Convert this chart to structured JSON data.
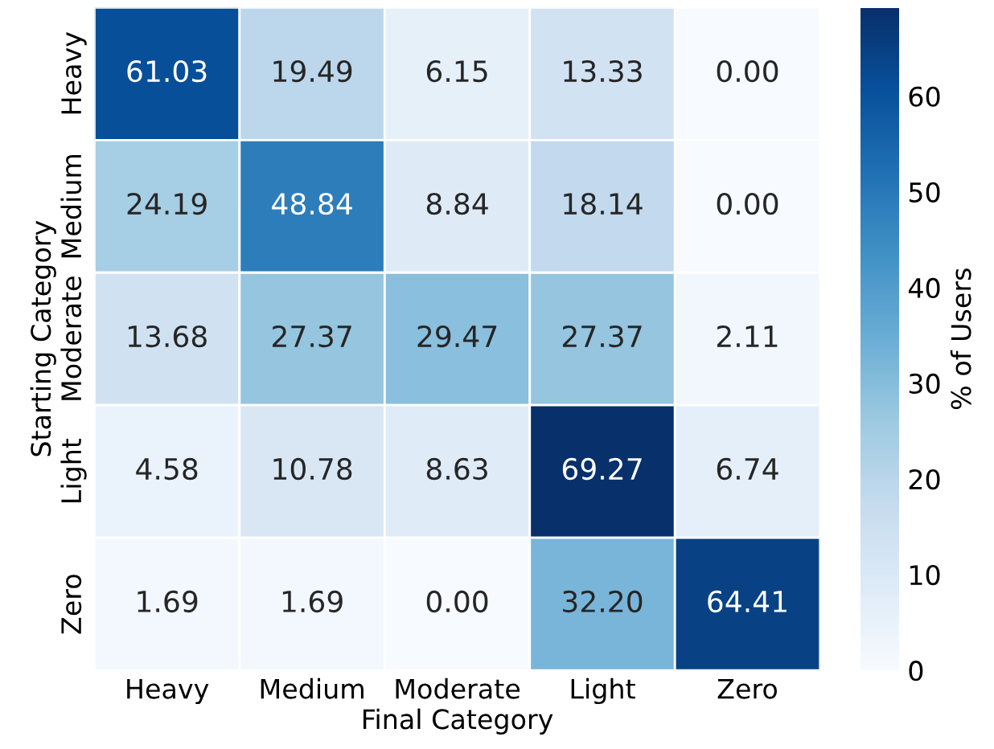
{
  "chart_data": {
    "type": "heatmap",
    "xlabel": "Final Category",
    "ylabel": "Starting Category",
    "clabel": "% of Users",
    "categories": [
      "Heavy",
      "Medium",
      "Moderate",
      "Light",
      "Zero"
    ],
    "y_categories": [
      "Heavy",
      "Medium",
      "Moderate",
      "Light",
      "Zero"
    ],
    "cells": [
      [
        61.03,
        19.49,
        6.15,
        13.33,
        0.0
      ],
      [
        24.19,
        48.84,
        8.84,
        18.14,
        0.0
      ],
      [
        13.68,
        27.37,
        29.47,
        27.37,
        2.11
      ],
      [
        4.58,
        10.78,
        8.63,
        69.27,
        6.74
      ],
      [
        1.69,
        1.69,
        0.0,
        32.2,
        64.41
      ]
    ],
    "cell_labels": [
      [
        "61.03",
        "19.49",
        "6.15",
        "13.33",
        "0.00"
      ],
      [
        "24.19",
        "48.84",
        "8.84",
        "18.14",
        "0.00"
      ],
      [
        "13.68",
        "27.37",
        "29.47",
        "27.37",
        "2.11"
      ],
      [
        "4.58",
        "10.78",
        "8.63",
        "69.27",
        "6.74"
      ],
      [
        "1.69",
        "1.69",
        "0.00",
        "32.20",
        "64.41"
      ]
    ],
    "clim": [
      0,
      69.27
    ],
    "cticks": [
      0,
      10,
      20,
      30,
      40,
      50,
      60
    ]
  }
}
